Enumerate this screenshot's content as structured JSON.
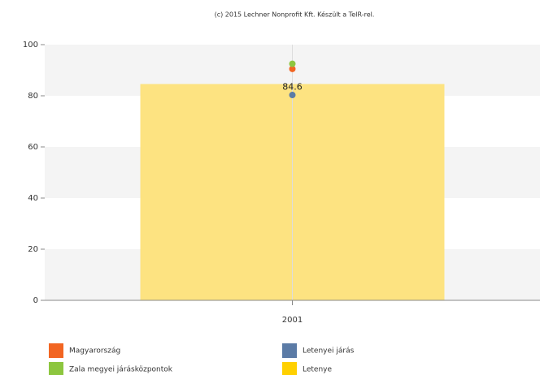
{
  "chart_data": {
    "type": "bar",
    "title": "(c) 2015 Lechner Nonprofit Kft. Készült a TeIR-rel.",
    "categories": [
      "2001"
    ],
    "series": [
      {
        "name": "Magyarország",
        "color": "#f26522",
        "mark": "point",
        "values": [
          90.5
        ]
      },
      {
        "name": "Letenyei járás",
        "color": "#5b7ba6",
        "mark": "point",
        "values": [
          80.3
        ]
      },
      {
        "name": "Zala megyei járásközpontok",
        "color": "#8dc63f",
        "mark": "point",
        "values": [
          92.5
        ]
      },
      {
        "name": "Letenye",
        "color": "#fde27a",
        "mark": "bar",
        "values": [
          84.6
        ]
      }
    ],
    "ylim": [
      0,
      100
    ],
    "yticks": [
      0,
      20,
      40,
      60,
      80,
      100
    ],
    "grid": true
  }
}
